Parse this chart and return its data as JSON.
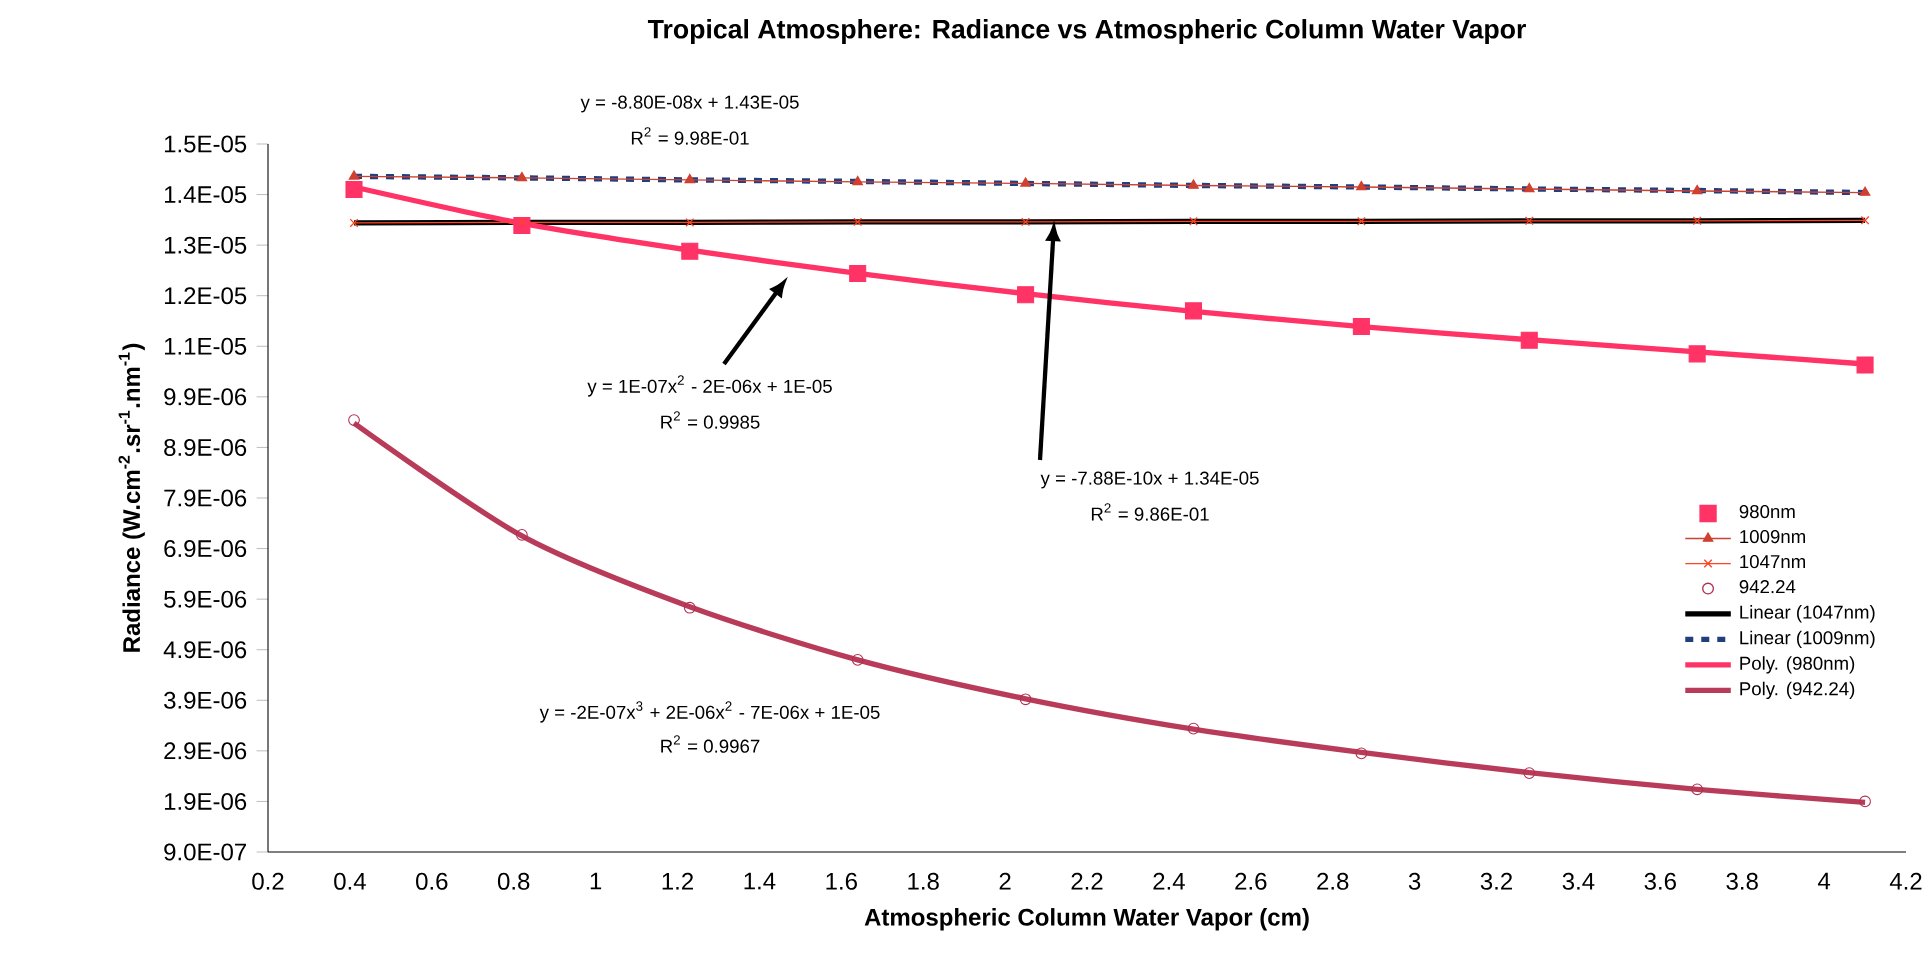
{
  "chart_data": {
    "type": "line",
    "title": "Tropical Atmosphere: Radiance vs Atmospheric Column Water Vapor",
    "xlabel": "Atmospheric Column Water Vapor (cm)",
    "ylabel": "Radiance (W.cm$^{-2}$.sr$^{-1}$.nm$^{-1}$)",
    "x": [
      0.41,
      0.82,
      1.23,
      1.64,
      2.05,
      2.46,
      2.87,
      3.28,
      3.69,
      4.1
    ],
    "series": [
      {
        "name": "980nm",
        "type": "scatter",
        "marker": "square",
        "color": "#ff3366",
        "values": [
          1.4e-05,
          1.329e-05,
          1.278e-05,
          1.234e-05,
          1.192e-05,
          1.16e-05,
          1.129e-05,
          1.102e-05,
          1.075e-05,
          1.053e-05
        ]
      },
      {
        "name": "1009nm",
        "marker": "triangle",
        "color": "#d04030",
        "values": [
          1.426e-05,
          1.423e-05,
          1.419e-05,
          1.415e-05,
          1.412e-05,
          1.408e-05,
          1.405e-05,
          1.401e-05,
          1.397e-05,
          1.394e-05
        ]
      },
      {
        "name": "1047nm",
        "marker": "cross",
        "color": "#ff4422",
        "values": [
          1.334e-05,
          1.335e-05,
          1.335e-05,
          1.336e-05,
          1.336e-05,
          1.337e-05,
          1.337e-05,
          1.338e-05,
          1.338e-05,
          1.339e-05
        ]
      },
      {
        "name": "942.24",
        "type": "scatter",
        "marker": "circle",
        "color": "#b03050",
        "values": [
          9.44e-06,
          7.17e-06,
          5.73e-06,
          4.7e-06,
          3.92e-06,
          3.34e-06,
          2.85e-06,
          2.46e-06,
          2.14e-06,
          1.9e-06
        ]
      },
      {
        "name": "Linear (1047nm)",
        "color": "#000000",
        "values": [
          1.334e-05,
          1.335e-05,
          1.335e-05,
          1.336e-05,
          1.336e-05,
          1.337e-05,
          1.337e-05,
          1.338e-05,
          1.338e-05,
          1.339e-05
        ]
      },
      {
        "name": "Linear (1009nm)",
        "line_style": "dashed",
        "color": "#1f3f7f",
        "values": [
          1.426e-05,
          1.423e-05,
          1.419e-05,
          1.416e-05,
          1.412e-05,
          1.408e-05,
          1.405e-05,
          1.401e-05,
          1.398e-05,
          1.394e-05
        ]
      },
      {
        "name": "Poly. (980nm)",
        "color": "#ff3366",
        "values": [
          1.405e-05,
          1.333e-05,
          1.28e-05,
          1.234e-05,
          1.194e-05,
          1.159e-05,
          1.129e-05,
          1.103e-05,
          1.079e-05,
          1.055e-05
        ]
      },
      {
        "name": "Poly. (942.24)",
        "color": "#b83c5a",
        "values": [
          9.38e-06,
          7.15e-06,
          5.75e-06,
          4.7e-06,
          3.93e-06,
          3.33e-06,
          2.87e-06,
          2.47e-06,
          2.14e-06,
          1.88e-06
        ]
      }
    ],
    "xlim": [
      0.2,
      4.2
    ],
    "xticks": [
      0.2,
      0.4,
      0.6,
      0.8,
      1,
      1.2,
      1.4,
      1.6,
      1.8,
      2,
      2.2,
      2.4,
      2.6,
      2.8,
      3,
      3.2,
      3.4,
      3.6,
      3.8,
      4,
      4.2
    ],
    "ylim": [
      9e-07,
      1.49e-05
    ],
    "yticks": [
      {
        "value": 9e-07,
        "label": "9.0E-07"
      },
      {
        "value": 1.9e-06,
        "label": "1.9E-06"
      },
      {
        "value": 2.9e-06,
        "label": "2.9E-06"
      },
      {
        "value": 3.9e-06,
        "label": "3.9E-06"
      },
      {
        "value": 4.9e-06,
        "label": "4.9E-06"
      },
      {
        "value": 5.9e-06,
        "label": "5.9E-06"
      },
      {
        "value": 6.9e-06,
        "label": "6.9E-06"
      },
      {
        "value": 7.9e-06,
        "label": "7.9E-06"
      },
      {
        "value": 8.9e-06,
        "label": "8.9E-06"
      },
      {
        "value": 9.9e-06,
        "label": "9.9E-06"
      },
      {
        "value": 1.09e-05,
        "label": "1.1E-05"
      },
      {
        "value": 1.19e-05,
        "label": "1.2E-05"
      },
      {
        "value": 1.29e-05,
        "label": "1.3E-05"
      },
      {
        "value": 1.39e-05,
        "label": "1.4E-05"
      },
      {
        "value": 1.49e-05,
        "label": "1.5E-05"
      }
    ],
    "annotations": [
      "y = -8.80E-08x + 1.43E-05",
      "R$^{2}$ = 9.98E-01",
      "y = 1E-07x$^{2}$ - 2E-06x + 1E-05",
      "R$^{2}$ = 0.9985",
      "y = -7.88E-10x + 1.34E-05",
      "R$^{2}$ = 9.86E-01",
      "y = -2E-07x$^{3}$ + 2E-06x$^{2}$ - 7E-06x + 1E-05",
      "R$^{2}$ = 0.9967"
    ],
    "legend": "right"
  }
}
